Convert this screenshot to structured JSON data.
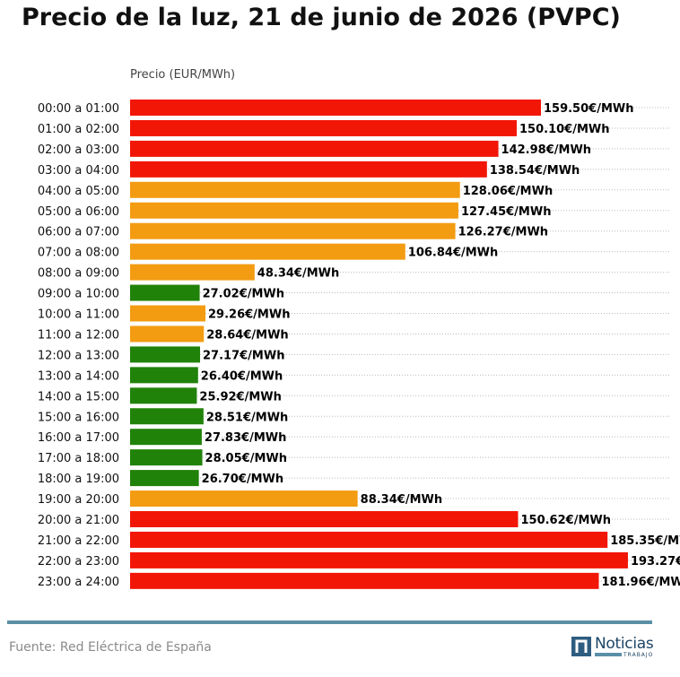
{
  "title": "Precio de la luz, 21 de junio de 2026 (PVPC)",
  "source": "Fuente: Red Eléctrica de España",
  "logo": {
    "name": "Noticias",
    "subtitle": "TRABAJO",
    "icon": "n-logo-icon"
  },
  "colors": {
    "high": "#f21606",
    "medium": "#f39c12",
    "low": "#21820a",
    "footer_rule": "#5a8fa6"
  },
  "chart_data": {
    "type": "bar",
    "orientation": "horizontal",
    "title": "Precio de la luz, 21 de junio de 2026 (PVPC)",
    "xlabel": "Precio (EUR/MWh)",
    "value_suffix": "€/MWh",
    "xlim": [
      0,
      210
    ],
    "grid": "horizontal dotted",
    "categories": [
      "00:00 a 01:00",
      "01:00 a 02:00",
      "02:00 a 03:00",
      "03:00 a 04:00",
      "04:00 a 05:00",
      "05:00 a 06:00",
      "06:00 a 07:00",
      "07:00 a 08:00",
      "08:00 a 09:00",
      "09:00 a 10:00",
      "10:00 a 11:00",
      "11:00 a 12:00",
      "12:00 a 13:00",
      "13:00 a 14:00",
      "14:00 a 15:00",
      "15:00 a 16:00",
      "16:00 a 17:00",
      "17:00 a 18:00",
      "18:00 a 19:00",
      "19:00 a 20:00",
      "20:00 a 21:00",
      "21:00 a 22:00",
      "22:00 a 23:00",
      "23:00 a 24:00"
    ],
    "values": [
      159.5,
      150.1,
      142.98,
      138.54,
      128.06,
      127.45,
      126.27,
      106.84,
      48.34,
      27.02,
      29.26,
      28.64,
      27.17,
      26.4,
      25.92,
      28.51,
      27.83,
      28.05,
      26.7,
      88.34,
      150.62,
      185.35,
      193.27,
      181.96
    ],
    "levels": [
      "high",
      "high",
      "high",
      "high",
      "medium",
      "medium",
      "medium",
      "medium",
      "medium",
      "low",
      "medium",
      "medium",
      "low",
      "low",
      "low",
      "low",
      "low",
      "low",
      "low",
      "medium",
      "high",
      "high",
      "high",
      "high"
    ]
  }
}
